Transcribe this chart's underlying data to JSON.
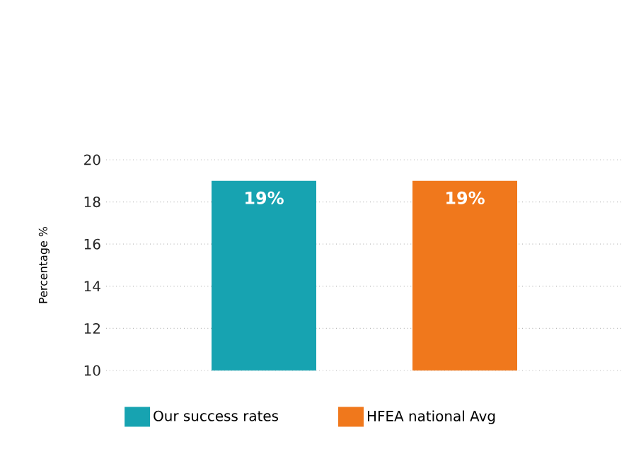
{
  "chart_data": {
    "type": "bar",
    "ylabel": "Percentage %",
    "categories": [
      null
    ],
    "series": [
      {
        "name": "Our success rates",
        "color": "#17a3b1",
        "values": [
          19
        ],
        "value_labels": [
          "19%"
        ]
      },
      {
        "name": "HFEA national Avg",
        "color": "#f0781c",
        "values": [
          19
        ],
        "value_labels": [
          "19%"
        ]
      }
    ],
    "ylim": [
      10,
      20
    ],
    "yticks": [
      10,
      12,
      14,
      16,
      18,
      20
    ],
    "grid": "y",
    "legend": "bottom",
    "tick_labels": "y"
  }
}
